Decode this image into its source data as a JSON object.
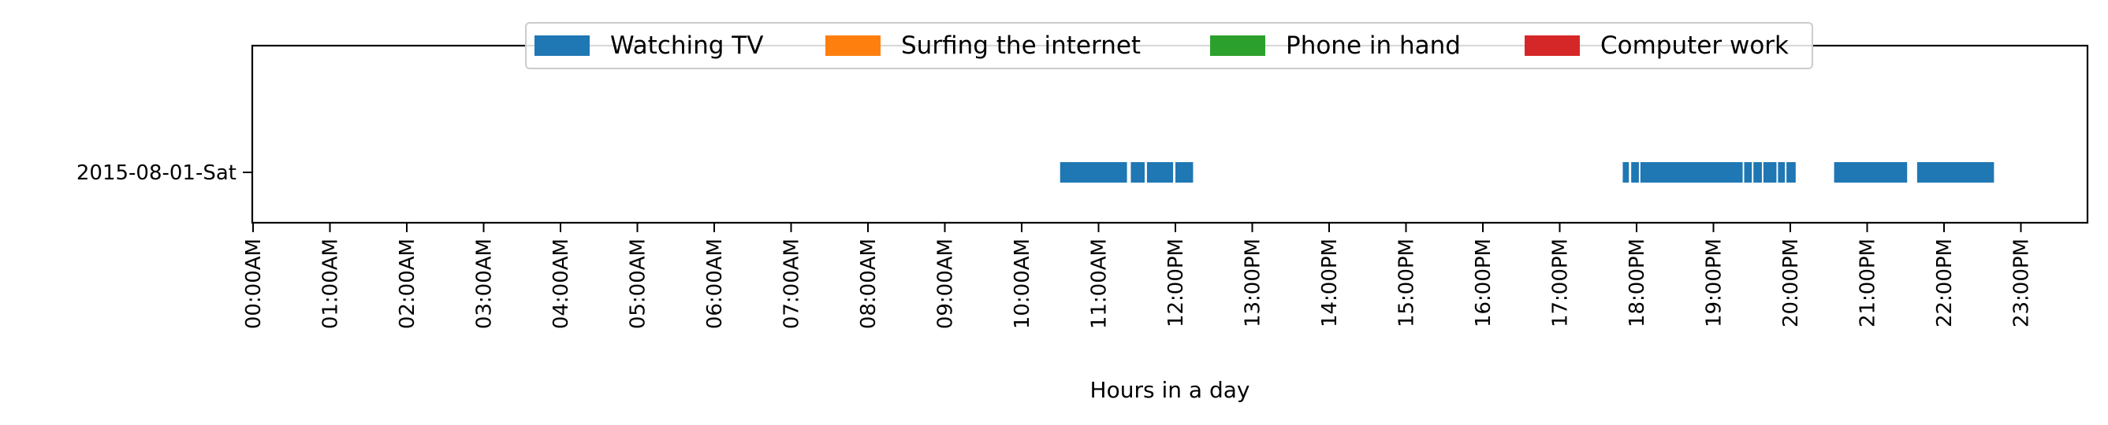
{
  "chart_data": {
    "type": "timeline",
    "xlabel": "Hours in a day",
    "ylabel": "",
    "xlim": [
      0,
      24
    ],
    "x_ticks": [
      {
        "value": 0,
        "label": "00:00AM"
      },
      {
        "value": 1,
        "label": "01:00AM"
      },
      {
        "value": 2,
        "label": "02:00AM"
      },
      {
        "value": 3,
        "label": "03:00AM"
      },
      {
        "value": 4,
        "label": "04:00AM"
      },
      {
        "value": 5,
        "label": "05:00AM"
      },
      {
        "value": 6,
        "label": "06:00AM"
      },
      {
        "value": 7,
        "label": "07:00AM"
      },
      {
        "value": 8,
        "label": "08:00AM"
      },
      {
        "value": 9,
        "label": "09:00AM"
      },
      {
        "value": 10,
        "label": "10:00AM"
      },
      {
        "value": 11,
        "label": "11:00AM"
      },
      {
        "value": 12,
        "label": "12:00PM"
      },
      {
        "value": 13,
        "label": "13:00PM"
      },
      {
        "value": 14,
        "label": "14:00PM"
      },
      {
        "value": 15,
        "label": "15:00PM"
      },
      {
        "value": 16,
        "label": "16:00PM"
      },
      {
        "value": 17,
        "label": "17:00PM"
      },
      {
        "value": 18,
        "label": "18:00PM"
      },
      {
        "value": 19,
        "label": "19:00PM"
      },
      {
        "value": 20,
        "label": "20:00PM"
      },
      {
        "value": 21,
        "label": "21:00PM"
      },
      {
        "value": 22,
        "label": "22:00PM"
      },
      {
        "value": 23,
        "label": "23:00PM"
      }
    ],
    "y_categories": [
      "2015-08-01-Sat"
    ],
    "legend_position": "top-center",
    "grid": false,
    "series": [
      {
        "name": "Watching TV",
        "color": "#1f77b4",
        "intervals": [
          [
            10.5,
            11.37
          ],
          [
            11.42,
            11.6
          ],
          [
            11.63,
            11.97
          ],
          [
            12.0,
            12.23
          ],
          [
            17.82,
            17.9
          ],
          [
            17.93,
            18.03
          ],
          [
            18.05,
            19.38
          ],
          [
            19.4,
            19.5
          ],
          [
            19.52,
            19.63
          ],
          [
            19.65,
            19.82
          ],
          [
            19.84,
            19.93
          ],
          [
            19.95,
            20.07
          ],
          [
            20.57,
            21.52
          ],
          [
            21.65,
            22.65
          ]
        ]
      },
      {
        "name": "Surfing the internet",
        "color": "#ff7f0e",
        "intervals": []
      },
      {
        "name": "Phone in hand",
        "color": "#2ca02c",
        "intervals": []
      },
      {
        "name": "Computer work",
        "color": "#d62728",
        "intervals": []
      }
    ]
  }
}
